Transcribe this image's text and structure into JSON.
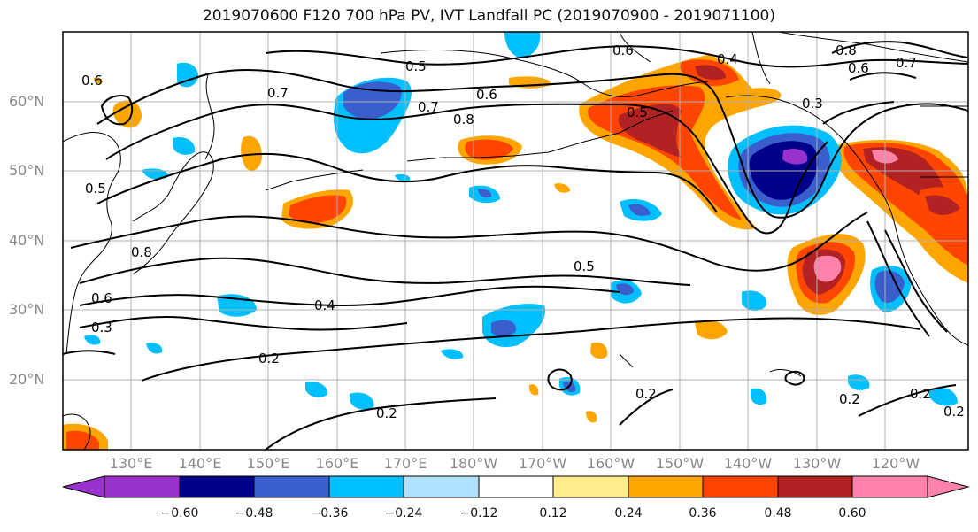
{
  "title": "2019070600 F120 700 hPa PV, IVT Landfall PC (2019070900 - 2019071100)",
  "lat_labels": [
    "60°N",
    "50°N",
    "40°N",
    "30°N",
    "20°N"
  ],
  "lon_labels": [
    "130°E",
    "140°E",
    "150°E",
    "160°E",
    "170°E",
    "180°W",
    "170°W",
    "160°W",
    "150°W",
    "140°W",
    "130°W",
    "120°W"
  ],
  "colorbar": {
    "colors": [
      "#9932cc",
      "#00008b",
      "#3a5fcd",
      "#00bfff",
      "#b0e2ff",
      "#ffffff",
      "#ffec8b",
      "#ffa500",
      "#ff4500",
      "#b22222",
      "#ff82ab"
    ],
    "tick_labels": [
      "−0.60",
      "−0.48",
      "−0.36",
      "−0.24",
      "−0.12",
      "0.12",
      "0.24",
      "0.36",
      "0.48",
      "0.60"
    ]
  },
  "contour_labels": [
    "0.6",
    "0.7",
    "0.5",
    "0.5",
    "0.7",
    "0.8",
    "0.6",
    "0.6",
    "0.4",
    "0.8",
    "0.6",
    "0.7",
    "0.3",
    "0.5",
    "0.8",
    "0.6",
    "0.3",
    "0.4",
    "0.2",
    "0.5",
    "0.2",
    "0.2",
    "0.2",
    "0.2",
    "0.2"
  ]
}
